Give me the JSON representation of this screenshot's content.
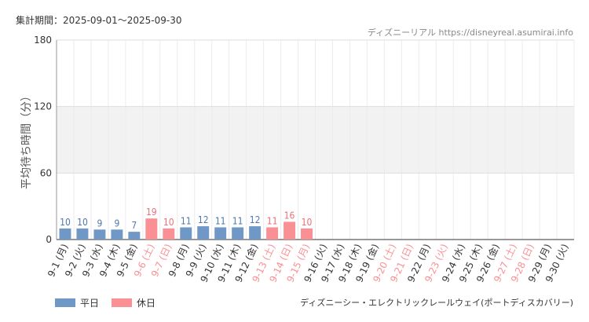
{
  "header": {
    "period": "集計期間：2025-09-01～2025-09-30",
    "credit": "ディズニーリアル https://disneyreal.asumirai.info"
  },
  "footer": {
    "attraction": "ディズニーシー・エレクトリックレールウェイ(ポートディスカバリー)"
  },
  "colors": {
    "weekday": "#6f98c6",
    "holiday": "#fa8f94",
    "weekday_text": "#4d78ad",
    "holiday_text": "#f06e75",
    "band": "#f2f2f2"
  },
  "chart_data": {
    "type": "bar",
    "ylabel": "平均待ち時間（分）",
    "ylim": [
      0,
      180
    ],
    "yticks": [
      0,
      60,
      120,
      180
    ],
    "highlight_band": [
      60,
      120
    ],
    "legend": [
      {
        "name": "平日",
        "color": "#6f98c6"
      },
      {
        "name": "休日",
        "color": "#fa8f94"
      }
    ],
    "categories": [
      "9-1 (月)",
      "9-2 (火)",
      "9-3 (水)",
      "9-4 (木)",
      "9-5 (金)",
      "9-6 (土)",
      "9-7 (日)",
      "9-8 (月)",
      "9-9 (火)",
      "9-10 (水)",
      "9-11 (木)",
      "9-12 (金)",
      "9-13 (土)",
      "9-14 (日)",
      "9-15 (月)",
      "9-16 (火)",
      "9-17 (水)",
      "9-18 (木)",
      "9-19 (金)",
      "9-20 (土)",
      "9-21 (日)",
      "9-22 (月)",
      "9-23 (火)",
      "9-24 (水)",
      "9-25 (木)",
      "9-26 (金)",
      "9-27 (土)",
      "9-28 (日)",
      "9-29 (月)",
      "9-30 (火)"
    ],
    "values": [
      10,
      10,
      9,
      9,
      7,
      19,
      10,
      11,
      12,
      11,
      11,
      12,
      11,
      16,
      10,
      null,
      null,
      null,
      null,
      null,
      null,
      null,
      null,
      null,
      null,
      null,
      null,
      null,
      null,
      null
    ],
    "holiday": [
      false,
      false,
      false,
      false,
      false,
      true,
      true,
      false,
      false,
      false,
      false,
      false,
      true,
      true,
      true,
      false,
      false,
      false,
      false,
      true,
      true,
      false,
      true,
      false,
      false,
      false,
      true,
      true,
      false,
      false
    ]
  }
}
